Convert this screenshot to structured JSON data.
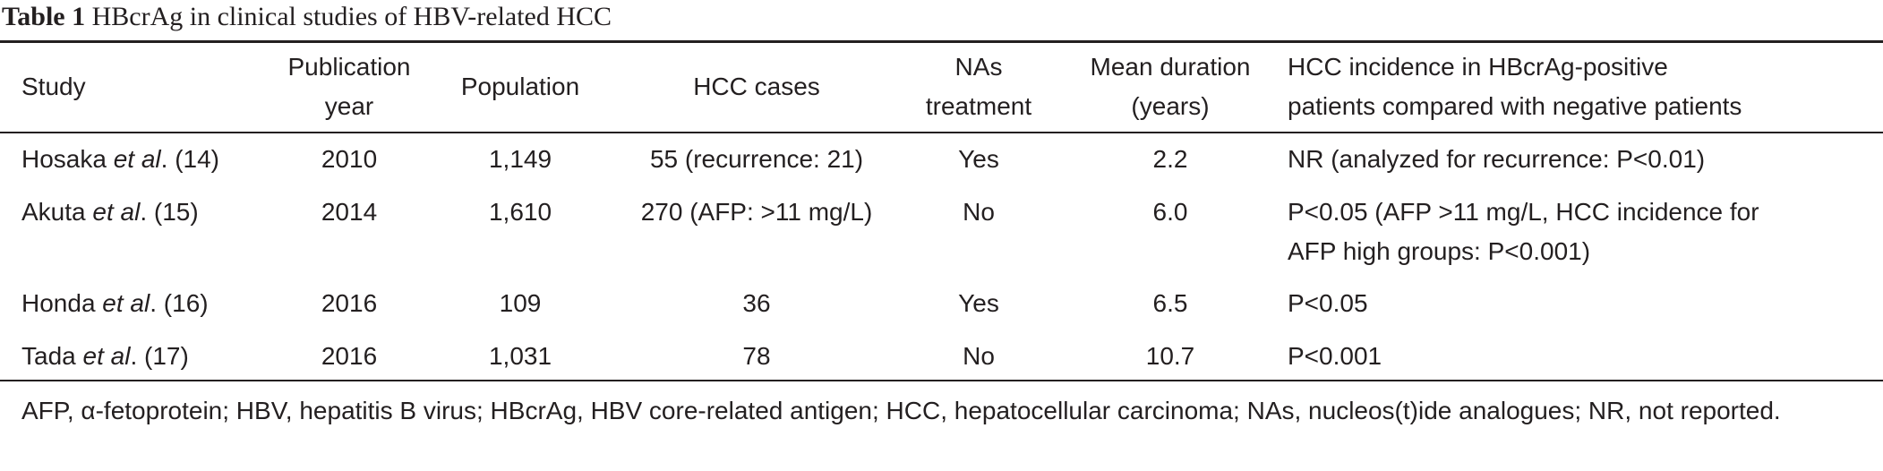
{
  "caption": {
    "label": "Table 1",
    "title": "HBcrAg in clinical studies of HBV-related HCC"
  },
  "table": {
    "header": [
      [
        "Study"
      ],
      [
        "Publication",
        "year"
      ],
      [
        "Population"
      ],
      [
        "HCC cases"
      ],
      [
        "NAs",
        "treatment"
      ],
      [
        "Mean duration",
        "(years)"
      ],
      [
        "HCC incidence in HBcrAg-positive",
        "patients compared with negative patients"
      ]
    ],
    "rows": [
      [
        [
          "Hosaka ",
          "et al",
          ". (14)"
        ],
        "2010",
        "1,149",
        "55 (recurrence: 21)",
        "Yes",
        "2.2",
        [
          "NR (analyzed for recurrence: P<0.01)"
        ]
      ],
      [
        [
          "Akuta ",
          "et al",
          ". (15)"
        ],
        "2014",
        "1,610",
        "270 (AFP: >11 mg/L)",
        "No",
        "6.0",
        [
          "P<0.05 (AFP >11 mg/L, HCC incidence for",
          "AFP high groups: P<0.001)"
        ]
      ],
      [
        [
          "Honda ",
          "et al",
          ". (16)"
        ],
        "2016",
        "109",
        "36",
        "Yes",
        "6.5",
        [
          "P<0.05"
        ]
      ],
      [
        [
          "Tada ",
          "et al",
          ". (17)"
        ],
        "2016",
        "1,031",
        "78",
        "No",
        "10.7",
        [
          "P<0.001"
        ]
      ]
    ]
  },
  "footnote": "AFP, α-fetoprotein; HBV, hepatitis B virus; HBcrAg, HBV core-related antigen; HCC, hepatocellular carcinoma; NAs, nucleos(t)ide analogues; NR, not reported."
}
